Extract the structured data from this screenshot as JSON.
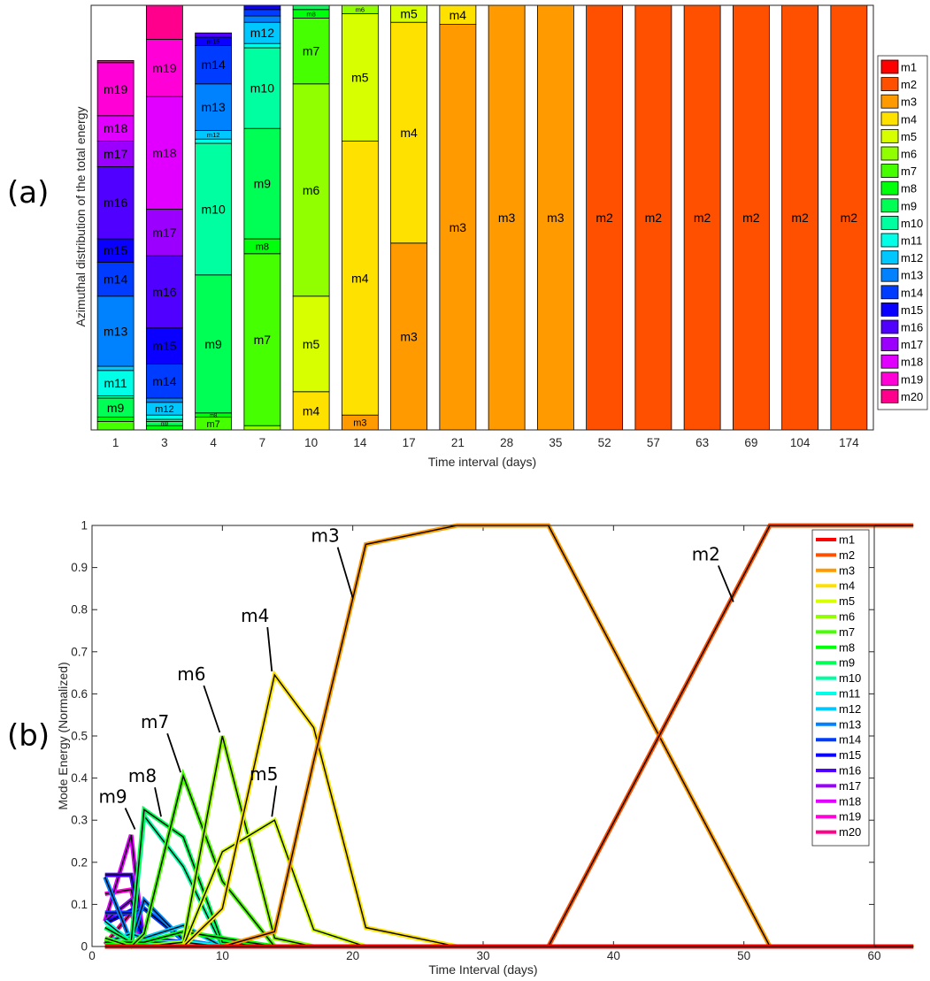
{
  "figure": {
    "label_a": "(a)",
    "label_b": "(b)"
  },
  "colors": {
    "m1": "#ff0000",
    "m2": "#ff5000",
    "m3": "#ff9b00",
    "m4": "#ffe100",
    "m5": "#d7ff00",
    "m6": "#91ff00",
    "m7": "#46ff00",
    "m8": "#00ff0a",
    "m9": "#00ff55",
    "m10": "#00ffa0",
    "m11": "#00ffe6",
    "m12": "#00c8ff",
    "m13": "#0082ff",
    "m14": "#003cff",
    "m15": "#0a00ff",
    "m16": "#5000ff",
    "m17": "#9b00ff",
    "m18": "#e100ff",
    "m19": "#ff00d7",
    "m20": "#ff008c"
  },
  "chart_data": [
    {
      "type": "bar",
      "stacked": true,
      "panel": "(a)",
      "xlabel": "Time interval (days)",
      "ylabel": "Azimuthal distribution of the total energy",
      "ylim": [
        0,
        1
      ],
      "legend_position": "right",
      "legend": [
        "m1",
        "m2",
        "m3",
        "m4",
        "m5",
        "m6",
        "m7",
        "m8",
        "m9",
        "m10",
        "m11",
        "m12",
        "m13",
        "m14",
        "m15",
        "m16",
        "m17",
        "m18",
        "m19",
        "m20"
      ],
      "categories": [
        "1",
        "3",
        "4",
        "7",
        "10",
        "14",
        "17",
        "21",
        "28",
        "35",
        "52",
        "57",
        "63",
        "69",
        "104",
        "174"
      ],
      "bars": [
        {
          "x": "1",
          "segments": [
            {
              "mode": "m7",
              "value": 0.02
            },
            {
              "mode": "m8",
              "value": 0.01
            },
            {
              "mode": "m9",
              "value": 0.045,
              "label": "m9"
            },
            {
              "mode": "m10",
              "value": 0.005
            },
            {
              "mode": "m11",
              "value": 0.06,
              "label": "m11"
            },
            {
              "mode": "m12",
              "value": 0.01
            },
            {
              "mode": "m13",
              "value": 0.165,
              "label": "m13"
            },
            {
              "mode": "m14",
              "value": 0.08,
              "label": "m14"
            },
            {
              "mode": "m15",
              "value": 0.055,
              "label": "m15"
            },
            {
              "mode": "m16",
              "value": 0.17,
              "label": "m16"
            },
            {
              "mode": "m17",
              "value": 0.06,
              "label": "m17"
            },
            {
              "mode": "m18",
              "value": 0.06,
              "label": "m18"
            },
            {
              "mode": "m19",
              "value": 0.125,
              "label": "m19"
            },
            {
              "mode": "m20",
              "value": 0.005
            }
          ]
        },
        {
          "x": "3",
          "segments": [
            {
              "mode": "m8",
              "value": 0.01
            },
            {
              "mode": "m9",
              "value": 0.01,
              "label": "m9"
            },
            {
              "mode": "m10",
              "value": 0.005
            },
            {
              "mode": "m11",
              "value": 0.01
            },
            {
              "mode": "m12",
              "value": 0.03,
              "label": "m12"
            },
            {
              "mode": "m13",
              "value": 0.01
            },
            {
              "mode": "m14",
              "value": 0.08,
              "label": "m14"
            },
            {
              "mode": "m15",
              "value": 0.085,
              "label": "m15"
            },
            {
              "mode": "m16",
              "value": 0.17,
              "label": "m16"
            },
            {
              "mode": "m17",
              "value": 0.11,
              "label": "m17"
            },
            {
              "mode": "m18",
              "value": 0.265,
              "label": "m18"
            },
            {
              "mode": "m19",
              "value": 0.135,
              "label": "m19"
            },
            {
              "mode": "m20",
              "value": 0.08
            }
          ]
        },
        {
          "x": "4",
          "segments": [
            {
              "mode": "m7",
              "value": 0.03,
              "label": "m7"
            },
            {
              "mode": "m8",
              "value": 0.01,
              "label": "m8"
            },
            {
              "mode": "m9",
              "value": 0.325,
              "label": "m9"
            },
            {
              "mode": "m10",
              "value": 0.31,
              "label": "m10"
            },
            {
              "mode": "m11",
              "value": 0.01
            },
            {
              "mode": "m12",
              "value": 0.02,
              "label": "m12"
            },
            {
              "mode": "m13",
              "value": 0.11,
              "label": "m13"
            },
            {
              "mode": "m14",
              "value": 0.09,
              "label": "m14"
            },
            {
              "mode": "m15",
              "value": 0.02,
              "label": "m15"
            },
            {
              "mode": "m16",
              "value": 0.01
            }
          ]
        },
        {
          "x": "7",
          "segments": [
            {
              "mode": "m6",
              "value": 0.01
            },
            {
              "mode": "m7",
              "value": 0.405,
              "label": "m7"
            },
            {
              "mode": "m8",
              "value": 0.035,
              "label": "m8"
            },
            {
              "mode": "m9",
              "value": 0.26,
              "label": "m9"
            },
            {
              "mode": "m10",
              "value": 0.19,
              "label": "m10"
            },
            {
              "mode": "m11",
              "value": 0.01
            },
            {
              "mode": "m12",
              "value": 0.05,
              "label": "m12"
            },
            {
              "mode": "m13",
              "value": 0.015
            },
            {
              "mode": "m14",
              "value": 0.015
            },
            {
              "mode": "m15",
              "value": 0.01
            }
          ]
        },
        {
          "x": "10",
          "segments": [
            {
              "mode": "m4",
              "value": 0.09,
              "label": "m4"
            },
            {
              "mode": "m5",
              "value": 0.225,
              "label": "m5"
            },
            {
              "mode": "m6",
              "value": 0.5,
              "label": "m6"
            },
            {
              "mode": "m7",
              "value": 0.155,
              "label": "m7"
            },
            {
              "mode": "m8",
              "value": 0.02,
              "label": "m8"
            },
            {
              "mode": "m9",
              "value": 0.01
            }
          ]
        },
        {
          "x": "14",
          "segments": [
            {
              "mode": "m3",
              "value": 0.035,
              "label": "m3"
            },
            {
              "mode": "m4",
              "value": 0.645,
              "label": "m4"
            },
            {
              "mode": "m5",
              "value": 0.3,
              "label": "m5"
            },
            {
              "mode": "m6",
              "value": 0.02,
              "label": "m6"
            }
          ]
        },
        {
          "x": "17",
          "segments": [
            {
              "mode": "m3",
              "value": 0.44,
              "label": "m3"
            },
            {
              "mode": "m4",
              "value": 0.52,
              "label": "m4"
            },
            {
              "mode": "m5",
              "value": 0.04,
              "label": "m5"
            }
          ]
        },
        {
          "x": "21",
          "segments": [
            {
              "mode": "m3",
              "value": 0.955,
              "label": "m3"
            },
            {
              "mode": "m4",
              "value": 0.045,
              "label": "m4"
            }
          ]
        },
        {
          "x": "28",
          "segments": [
            {
              "mode": "m3",
              "value": 1.0,
              "label": "m3"
            }
          ]
        },
        {
          "x": "35",
          "segments": [
            {
              "mode": "m3",
              "value": 1.0,
              "label": "m3"
            }
          ]
        },
        {
          "x": "52",
          "segments": [
            {
              "mode": "m2",
              "value": 1.0,
              "label": "m2"
            }
          ]
        },
        {
          "x": "57",
          "segments": [
            {
              "mode": "m2",
              "value": 1.0,
              "label": "m2"
            }
          ]
        },
        {
          "x": "63",
          "segments": [
            {
              "mode": "m2",
              "value": 1.0,
              "label": "m2"
            }
          ]
        },
        {
          "x": "69",
          "segments": [
            {
              "mode": "m2",
              "value": 1.0,
              "label": "m2"
            }
          ]
        },
        {
          "x": "104",
          "segments": [
            {
              "mode": "m2",
              "value": 1.0,
              "label": "m2"
            }
          ]
        },
        {
          "x": "174",
          "segments": [
            {
              "mode": "m2",
              "value": 1.0,
              "label": "m2"
            }
          ]
        }
      ]
    },
    {
      "type": "line",
      "panel": "(b)",
      "xlabel": "Time Interval (days)",
      "ylabel": "Mode Energy (Normalized)",
      "xlim": [
        0,
        60
      ],
      "ylim": [
        0,
        1
      ],
      "xticks": [
        0,
        10,
        20,
        30,
        40,
        50,
        60
      ],
      "yticks": [
        0,
        0.1,
        0.2,
        0.3,
        0.4,
        0.5,
        0.6,
        0.7,
        0.8,
        0.9,
        1
      ],
      "legend_position": "top-right",
      "legend": [
        "m1",
        "m2",
        "m3",
        "m4",
        "m5",
        "m6",
        "m7",
        "m8",
        "m9",
        "m10",
        "m11",
        "m12",
        "m13",
        "m14",
        "m15",
        "m16",
        "m17",
        "m18",
        "m19",
        "m20"
      ],
      "x": [
        1,
        3,
        4,
        7,
        10,
        14,
        17,
        21,
        28,
        35,
        52,
        57,
        63
      ],
      "series": [
        {
          "name": "m1",
          "values": [
            0,
            0,
            0,
            0,
            0,
            0,
            0,
            0,
            0,
            0,
            0,
            0,
            0
          ]
        },
        {
          "name": "m2",
          "values": [
            0,
            0,
            0,
            0,
            0,
            0,
            0,
            0,
            0,
            0,
            1,
            1,
            1
          ]
        },
        {
          "name": "m3",
          "values": [
            0,
            0,
            0,
            0,
            0,
            0.035,
            0.44,
            0.955,
            1,
            1,
            0,
            0,
            0
          ]
        },
        {
          "name": "m4",
          "values": [
            0,
            0,
            0,
            0,
            0.09,
            0.645,
            0.52,
            0.045,
            0,
            0,
            0,
            0,
            0
          ]
        },
        {
          "name": "m5",
          "values": [
            0,
            0,
            0,
            0,
            0.225,
            0.3,
            0.04,
            0,
            0,
            0,
            0,
            0,
            0
          ]
        },
        {
          "name": "m6",
          "values": [
            0,
            0,
            0,
            0.01,
            0.5,
            0.02,
            0,
            0,
            0,
            0,
            0,
            0,
            0
          ]
        },
        {
          "name": "m7",
          "values": [
            0.02,
            0,
            0.03,
            0.405,
            0.155,
            0,
            0,
            0,
            0,
            0,
            0,
            0,
            0
          ]
        },
        {
          "name": "m8",
          "values": [
            0.01,
            0.01,
            0.01,
            0.035,
            0.02,
            0,
            0,
            0,
            0,
            0,
            0,
            0,
            0
          ]
        },
        {
          "name": "m9",
          "values": [
            0.045,
            0.01,
            0.325,
            0.26,
            0.01,
            0,
            0,
            0,
            0,
            0,
            0,
            0,
            0
          ]
        },
        {
          "name": "m10",
          "values": [
            0.005,
            0.005,
            0.31,
            0.19,
            0,
            0,
            0,
            0,
            0,
            0,
            0,
            0,
            0
          ]
        },
        {
          "name": "m11",
          "values": [
            0.06,
            0.01,
            0.01,
            0.01,
            0,
            0,
            0,
            0,
            0,
            0,
            0,
            0,
            0
          ]
        },
        {
          "name": "m12",
          "values": [
            0.01,
            0.03,
            0.02,
            0.05,
            0,
            0,
            0,
            0,
            0,
            0,
            0,
            0,
            0
          ]
        },
        {
          "name": "m13",
          "values": [
            0.165,
            0.01,
            0.11,
            0.015,
            0,
            0,
            0,
            0,
            0,
            0,
            0,
            0,
            0
          ]
        },
        {
          "name": "m14",
          "values": [
            0.08,
            0.08,
            0.09,
            0.015,
            0,
            0,
            0,
            0,
            0,
            0,
            0,
            0,
            0
          ]
        },
        {
          "name": "m15",
          "values": [
            0.055,
            0.085,
            0.02,
            0.01,
            0,
            0,
            0,
            0,
            0,
            0,
            0,
            0,
            0
          ]
        },
        {
          "name": "m16",
          "values": [
            0.17,
            0.17,
            0.01,
            0,
            0,
            0,
            0,
            0,
            0,
            0,
            0,
            0,
            0
          ]
        },
        {
          "name": "m17",
          "values": [
            0.06,
            0.11,
            0,
            0,
            0,
            0,
            0,
            0,
            0,
            0,
            0,
            0,
            0
          ]
        },
        {
          "name": "m18",
          "values": [
            0.06,
            0.265,
            0,
            0,
            0,
            0,
            0,
            0,
            0,
            0,
            0,
            0,
            0
          ]
        },
        {
          "name": "m19",
          "values": [
            0.125,
            0.135,
            0,
            0,
            0,
            0,
            0,
            0,
            0,
            0,
            0,
            0,
            0
          ]
        },
        {
          "name": "m20",
          "values": [
            0.005,
            0.08,
            0,
            0,
            0,
            0,
            0,
            0,
            0,
            0,
            0,
            0,
            0
          ]
        }
      ],
      "annotations": [
        {
          "text": "m3",
          "x": 20.2,
          "y": 0.82
        },
        {
          "text": "m2",
          "x": 49.4,
          "y": 0.81
        },
        {
          "text": "m4",
          "x": 14,
          "y": 0.645
        },
        {
          "text": "m6",
          "x": 10,
          "y": 0.5
        },
        {
          "text": "m7",
          "x": 7,
          "y": 0.405
        },
        {
          "text": "m5",
          "x": 14,
          "y": 0.3
        },
        {
          "text": "m8",
          "x": 5.5,
          "y": 0.3
        },
        {
          "text": "m9",
          "x": 3.5,
          "y": 0.27
        }
      ]
    }
  ]
}
